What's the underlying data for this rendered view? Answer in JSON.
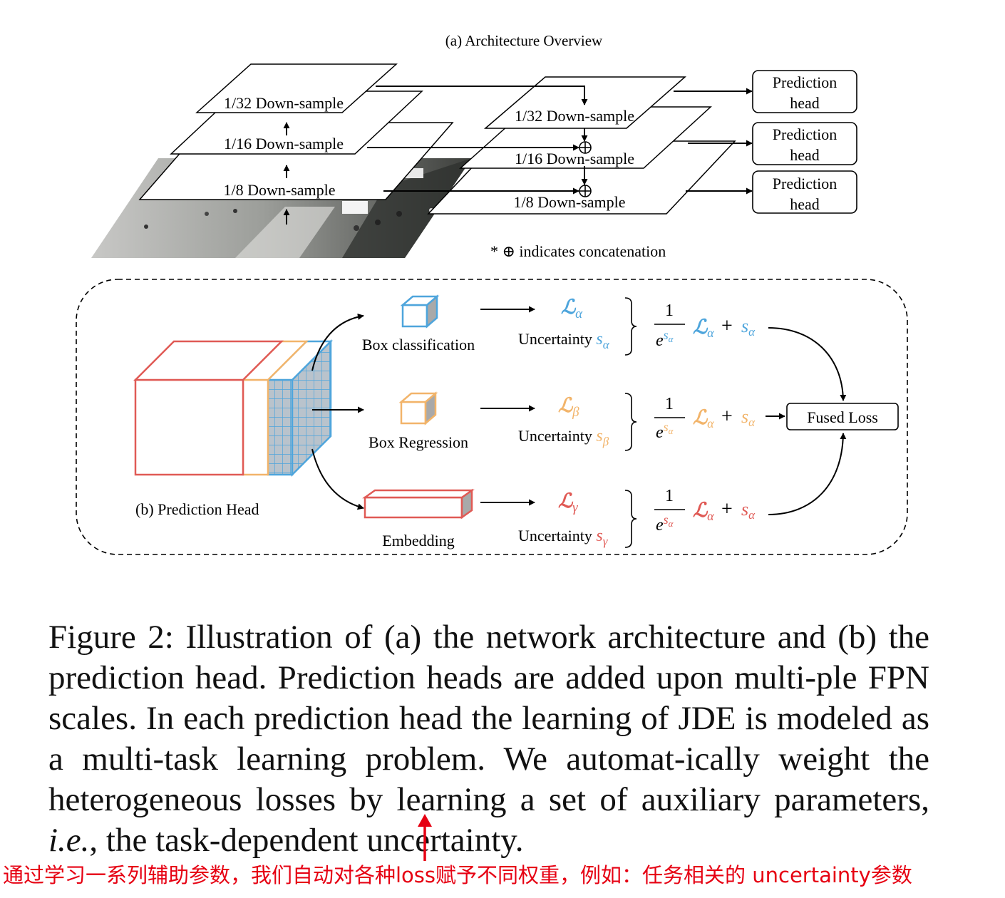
{
  "figure": {
    "part_a": {
      "title": "(a)  Architecture Overview",
      "left_layers": [
        "1/32 Down-sample",
        "1/16 Down-sample",
        "1/8 Down-sample"
      ],
      "right_layers": [
        "1/32 Down-sample",
        "1/16 Down-sample",
        "1/8 Down-sample"
      ],
      "head_label_line1": "Prediction",
      "head_label_line2": "head",
      "note": "* ⊕ indicates concatenation"
    },
    "part_b": {
      "title": "(b)  Prediction Head",
      "tasks": [
        {
          "name": "Box classification",
          "loss": "ℒ",
          "loss_sub": "α",
          "unc": "Uncertainty ",
          "unc_s": "s",
          "unc_sub": "α",
          "color": "#4ea5dc"
        },
        {
          "name": "Box Regression",
          "loss": "ℒ",
          "loss_sub": "β",
          "unc": "Uncertainty ",
          "unc_s": "s",
          "unc_sub": "β",
          "color": "#f2b46a"
        },
        {
          "name": "Embedding",
          "loss": "ℒ",
          "loss_sub": "γ",
          "unc": "Uncertainty ",
          "unc_s": "s",
          "unc_sub": "γ",
          "color": "#e05a55"
        }
      ],
      "formula": {
        "numerator": "1",
        "base": "e",
        "exp_s": "s",
        "exp_sub": "α",
        "loss": "ℒ",
        "loss_sub": "α",
        "plus": "+",
        "s": "s",
        "s_sub": "α"
      },
      "fused_loss": "Fused Loss"
    }
  },
  "caption": {
    "before_ie": "Figure 2: Illustration of (a) the network architecture and (b) the prediction head. Prediction heads are added upon multi-ple FPN scales. In each prediction head the learning of JDE is modeled as a multi-task learning problem. We automat-ically weight the heterogeneous losses by learning a set of auxiliary parameters, ",
    "ie": "i.e.",
    "after_ie": ", the task-dependent uncertainty."
  },
  "annotation": {
    "text": "通过学习一系列辅助参数，我们自动对各种loss赋予不同权重，例如：任务相关的 uncertainty参数",
    "color": "#e60012"
  }
}
